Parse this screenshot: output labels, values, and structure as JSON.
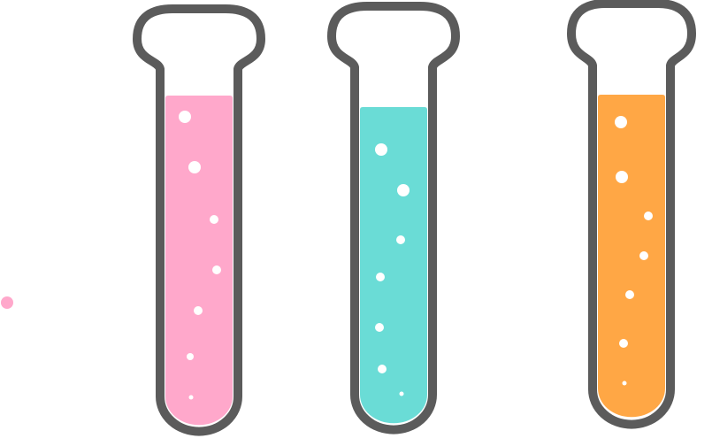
{
  "game": {
    "tubes": [
      {
        "name": "tube-pink",
        "liquid_color": "#ffa8cb",
        "liquid_fill": 0.85,
        "bubble_count": 7
      },
      {
        "name": "tube-teal",
        "liquid_color": "#6adcd6",
        "liquid_fill": 0.81,
        "bubble_count": 7
      },
      {
        "name": "tube-orange",
        "liquid_color": "#ffa745",
        "liquid_fill": 0.86,
        "bubble_count": 7
      }
    ],
    "dot_color": "#ffa8cb",
    "outline_color": "#5b5b5b"
  }
}
